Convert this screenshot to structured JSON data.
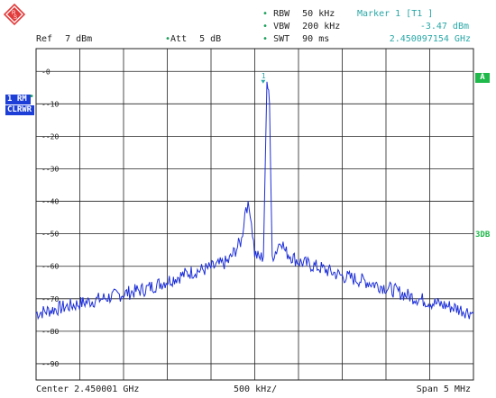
{
  "header": {
    "rbw_label": "RBW",
    "rbw_value": "50 kHz",
    "vbw_label": "VBW",
    "vbw_value": "200 kHz",
    "swt_label": "SWT",
    "swt_value": "90 ms",
    "ref_label": "Ref",
    "ref_value": "7 dBm",
    "att_label": "Att",
    "att_value": "5 dB",
    "marker_title": "Marker 1 [T1 ]",
    "marker_level": "-3.47 dBm",
    "marker_freq": "2.450097154 GHz"
  },
  "trace": {
    "name": "1 RM",
    "mode": "CLRWR",
    "marker_label": "1"
  },
  "badges": {
    "a": "A",
    "threedb": "3DB"
  },
  "footer": {
    "center": "Center  2.450001 GHz",
    "rbw_div": "500 kHz/",
    "span": "Span  5 MHz"
  },
  "colors": {
    "trace": "#1d2fd8",
    "grid": "#222222",
    "teal": "#2aa7a7",
    "green": "#1fb84a"
  },
  "chart_data": {
    "type": "line",
    "y_ticks": [
      0,
      -10,
      -20,
      -30,
      -40,
      -50,
      -60,
      -70,
      -80,
      -90
    ],
    "y_tick_labels": [
      "0",
      "-10",
      "-20",
      "-30",
      "-40",
      "-50",
      "-60",
      "-70",
      "-80",
      "-90"
    ],
    "ylim": [
      -95,
      7
    ],
    "xlim": [
      2447.501,
      2452.501
    ],
    "x_unit": "MHz",
    "grid": true,
    "series": [
      {
        "points": [
          [
            2447.5,
            -74.5
          ],
          [
            2447.75,
            -73.0
          ],
          [
            2448.0,
            -71.5
          ],
          [
            2448.25,
            -70.0
          ],
          [
            2448.5,
            -68.5
          ],
          [
            2448.75,
            -67.0
          ],
          [
            2449.0,
            -64.5
          ],
          [
            2449.25,
            -62.0
          ],
          [
            2449.5,
            -60.5
          ],
          [
            2449.7,
            -58.5
          ],
          [
            2449.85,
            -52.0
          ],
          [
            2449.9,
            -41.0
          ],
          [
            2449.95,
            -43.0
          ],
          [
            2450.0,
            -56.0
          ],
          [
            2450.05,
            -57.5
          ],
          [
            2450.1,
            -57.0
          ],
          [
            2450.14,
            -2.5
          ],
          [
            2450.17,
            -10.0
          ],
          [
            2450.2,
            -57.0
          ],
          [
            2450.25,
            -55.0
          ],
          [
            2450.3,
            -51.5
          ],
          [
            2450.35,
            -55.5
          ],
          [
            2450.5,
            -58.5
          ],
          [
            2450.75,
            -60.5
          ],
          [
            2451.0,
            -63.0
          ],
          [
            2451.25,
            -64.5
          ],
          [
            2451.5,
            -66.5
          ],
          [
            2451.75,
            -69.0
          ],
          [
            2452.0,
            -71.0
          ],
          [
            2452.25,
            -72.5
          ],
          [
            2452.5,
            -74.5
          ]
        ]
      }
    ],
    "marker": {
      "x": 2450.097154,
      "y": -3.47
    }
  }
}
